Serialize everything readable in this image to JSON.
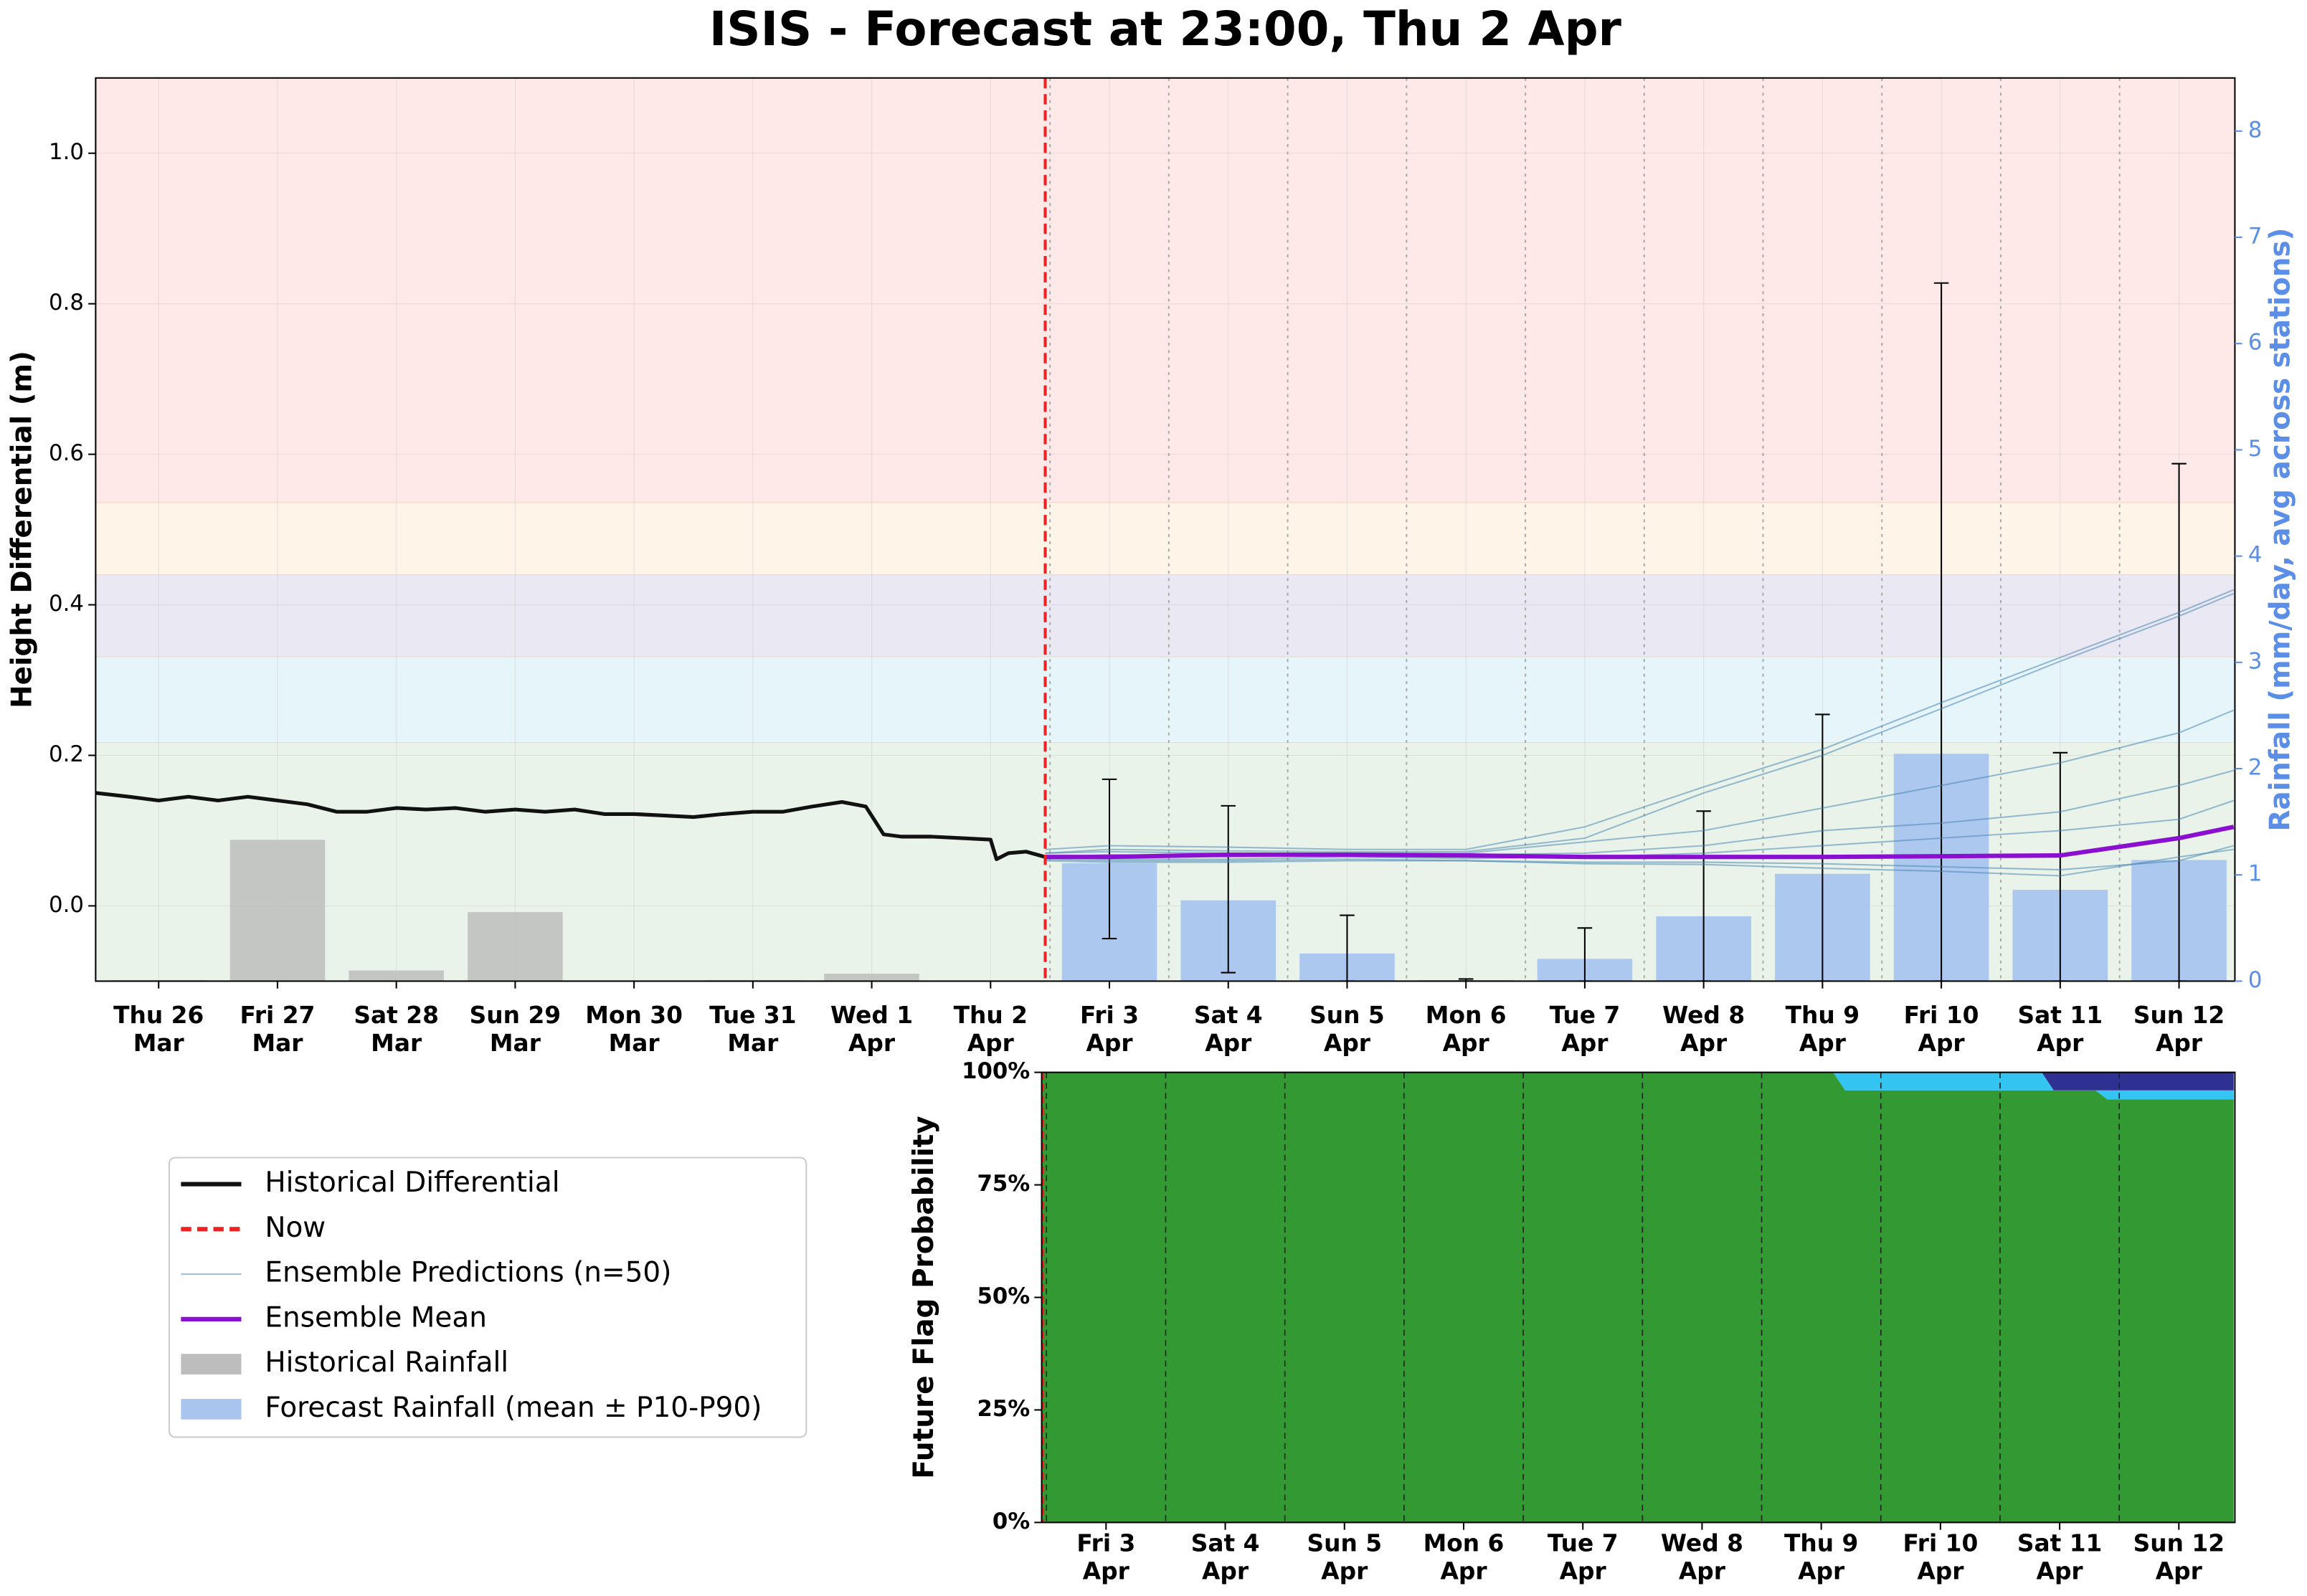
{
  "chart_data": [
    {
      "type": "line",
      "title": "ISIS - Forecast at 23:00, Thu 2 Apr",
      "ylabel": "Height Differential (m)",
      "y2label": "Rainfall (mm/day, avg across stations)",
      "y2color": "#5b8ee6",
      "categories": [
        [
          "Thu 26",
          "Mar"
        ],
        [
          "Fri 27",
          "Mar"
        ],
        [
          "Sat 28",
          "Mar"
        ],
        [
          "Sun 29",
          "Mar"
        ],
        [
          "Mon 30",
          "Mar"
        ],
        [
          "Tue 31",
          "Mar"
        ],
        [
          "Wed 1",
          "Apr"
        ],
        [
          "Thu 2",
          "Apr"
        ],
        [
          "Fri 3",
          "Apr"
        ],
        [
          "Sat 4",
          "Apr"
        ],
        [
          "Sun 5",
          "Apr"
        ],
        [
          "Mon 6",
          "Apr"
        ],
        [
          "Tue 7",
          "Apr"
        ],
        [
          "Wed 8",
          "Apr"
        ],
        [
          "Thu 9",
          "Apr"
        ],
        [
          "Fri 10",
          "Apr"
        ],
        [
          "Sat 11",
          "Apr"
        ],
        [
          "Sun 12",
          "Apr"
        ]
      ],
      "xlim": [
        -0.53,
        17.47
      ],
      "ylim": [
        -0.1,
        1.1
      ],
      "yticks": [
        {
          "value": 0,
          "label": "0.0"
        },
        0.2,
        0.4,
        0.6,
        0.8,
        {
          "value": 1,
          "label": "1.0"
        }
      ],
      "y2lim": [
        0,
        8.5
      ],
      "y2ticks": [
        0,
        1,
        2,
        3,
        4,
        5,
        6,
        7,
        8
      ],
      "grid": true,
      "legend": "below-left",
      "flag_bands": [
        {
          "from": -0.1,
          "to": 0.217,
          "color": "#e9f3e9"
        },
        {
          "from": 0.217,
          "to": 0.331,
          "color": "#e6f5fa"
        },
        {
          "from": 0.331,
          "to": 0.44,
          "color": "#eae9f3"
        },
        {
          "from": 0.44,
          "to": 0.536,
          "color": "#fef4e8"
        },
        {
          "from": 0.536,
          "to": 1.1,
          "color": "#fee8e8"
        }
      ],
      "series": [
        {
          "name": "Historical Differential",
          "type": "line",
          "color": "#111111",
          "x": [
            -0.53,
            -0.25,
            0,
            0.25,
            0.5,
            0.75,
            1,
            1.25,
            1.5,
            1.75,
            2,
            2.25,
            2.5,
            2.75,
            3,
            3.25,
            3.5,
            3.75,
            4,
            4.25,
            4.5,
            4.75,
            5,
            5.25,
            5.5,
            5.75,
            5.95,
            6.1,
            6.25,
            6.5,
            6.75,
            7,
            7.05,
            7.15,
            7.3,
            7.46
          ],
          "values": [
            0.15,
            0.145,
            0.14,
            0.145,
            0.14,
            0.145,
            0.14,
            0.135,
            0.125,
            0.125,
            0.13,
            0.128,
            0.13,
            0.125,
            0.128,
            0.125,
            0.128,
            0.122,
            0.122,
            0.12,
            0.118,
            0.122,
            0.125,
            0.125,
            0.132,
            0.138,
            0.132,
            0.095,
            0.092,
            0.092,
            0.09,
            0.088,
            0.062,
            0.07,
            0.072,
            0.065
          ]
        },
        {
          "name": "Now",
          "type": "vline",
          "color": "#ee2222",
          "x": 7.46
        },
        {
          "name": "Ensemble Predictions (n=50)",
          "type": "ensemble",
          "color": "#4a86b5",
          "x": [
            7.46,
            8,
            9,
            10,
            11,
            12,
            13,
            14,
            15,
            16,
            17,
            17.46
          ],
          "members": [
            [
              0.075,
              0.08,
              0.078,
              0.075,
              0.075,
              0.105,
              0.158,
              0.208,
              0.27,
              0.33,
              0.39,
              0.42
            ],
            [
              0.07,
              0.075,
              0.073,
              0.072,
              0.072,
              0.09,
              0.15,
              0.2,
              0.262,
              0.325,
              0.385,
              0.415
            ],
            [
              0.07,
              0.072,
              0.07,
              0.07,
              0.07,
              0.085,
              0.1,
              0.13,
              0.16,
              0.19,
              0.23,
              0.26
            ],
            [
              0.065,
              0.068,
              0.065,
              0.068,
              0.068,
              0.07,
              0.08,
              0.1,
              0.11,
              0.125,
              0.16,
              0.18
            ],
            [
              0.065,
              0.062,
              0.062,
              0.065,
              0.063,
              0.065,
              0.07,
              0.08,
              0.09,
              0.1,
              0.115,
              0.14
            ],
            [
              0.06,
              0.058,
              0.058,
              0.06,
              0.06,
              0.058,
              0.058,
              0.056,
              0.052,
              0.048,
              0.06,
              0.08
            ],
            [
              0.062,
              0.06,
              0.06,
              0.062,
              0.06,
              0.056,
              0.055,
              0.05,
              0.046,
              0.04,
              0.065,
              0.075
            ]
          ]
        },
        {
          "name": "Ensemble Mean",
          "type": "line",
          "color": "#8a0fd0",
          "x": [
            7.46,
            8,
            9,
            10,
            11,
            12,
            13,
            14,
            15,
            16,
            17,
            17.46
          ],
          "values": [
            0.065,
            0.065,
            0.068,
            0.068,
            0.067,
            0.065,
            0.065,
            0.065,
            0.066,
            0.067,
            0.09,
            0.105
          ]
        },
        {
          "name": "Historical Rainfall",
          "type": "bar",
          "axis": "y2",
          "color": "#bdbdbd",
          "x": [
            0,
            1,
            2,
            3,
            4,
            5,
            6,
            7
          ],
          "values": [
            0.01,
            1.33,
            0.1,
            0.65,
            0,
            0.01,
            0.07,
            0
          ]
        },
        {
          "name": "Forecast Rainfall (mean ± P10-P90)",
          "type": "bar",
          "axis": "y2",
          "color": "#a9c5ef",
          "x": [
            8,
            9,
            10,
            11,
            12,
            13,
            14,
            15,
            16,
            17
          ],
          "values": [
            1.11,
            0.76,
            0.26,
            0.01,
            0.21,
            0.61,
            1.01,
            2.14,
            0.86,
            1.14
          ],
          "p10": [
            0.4,
            0.08,
            0,
            0,
            0,
            0,
            0,
            0,
            0,
            0
          ],
          "p90": [
            1.9,
            1.65,
            0.62,
            0.02,
            0.5,
            1.6,
            2.51,
            6.57,
            2.15,
            4.87
          ]
        }
      ]
    },
    {
      "type": "area",
      "ylabel": "Future Flag Probability",
      "xlim": [
        7.46,
        17.47
      ],
      "ylim": [
        0,
        100
      ],
      "yticks": [
        {
          "value": 0,
          "label": "0%"
        },
        {
          "value": 25,
          "label": "25%"
        },
        {
          "value": 50,
          "label": "50%"
        },
        {
          "value": 75,
          "label": "75%"
        },
        {
          "value": 100,
          "label": "100%"
        }
      ],
      "x": [
        7.46,
        14.1,
        14.2,
        15.85,
        15.95,
        16.3,
        16.4,
        17.46
      ],
      "series": [
        {
          "color": "#339933",
          "values": [
            100,
            100,
            96,
            96,
            96,
            96,
            94,
            94
          ]
        },
        {
          "color": "#33c4f2",
          "values": [
            0,
            0,
            4,
            4,
            0,
            0,
            2,
            2
          ]
        },
        {
          "color": "#2e3192",
          "values": [
            0,
            0,
            0,
            0,
            4,
            4,
            4,
            4
          ]
        }
      ]
    }
  ]
}
